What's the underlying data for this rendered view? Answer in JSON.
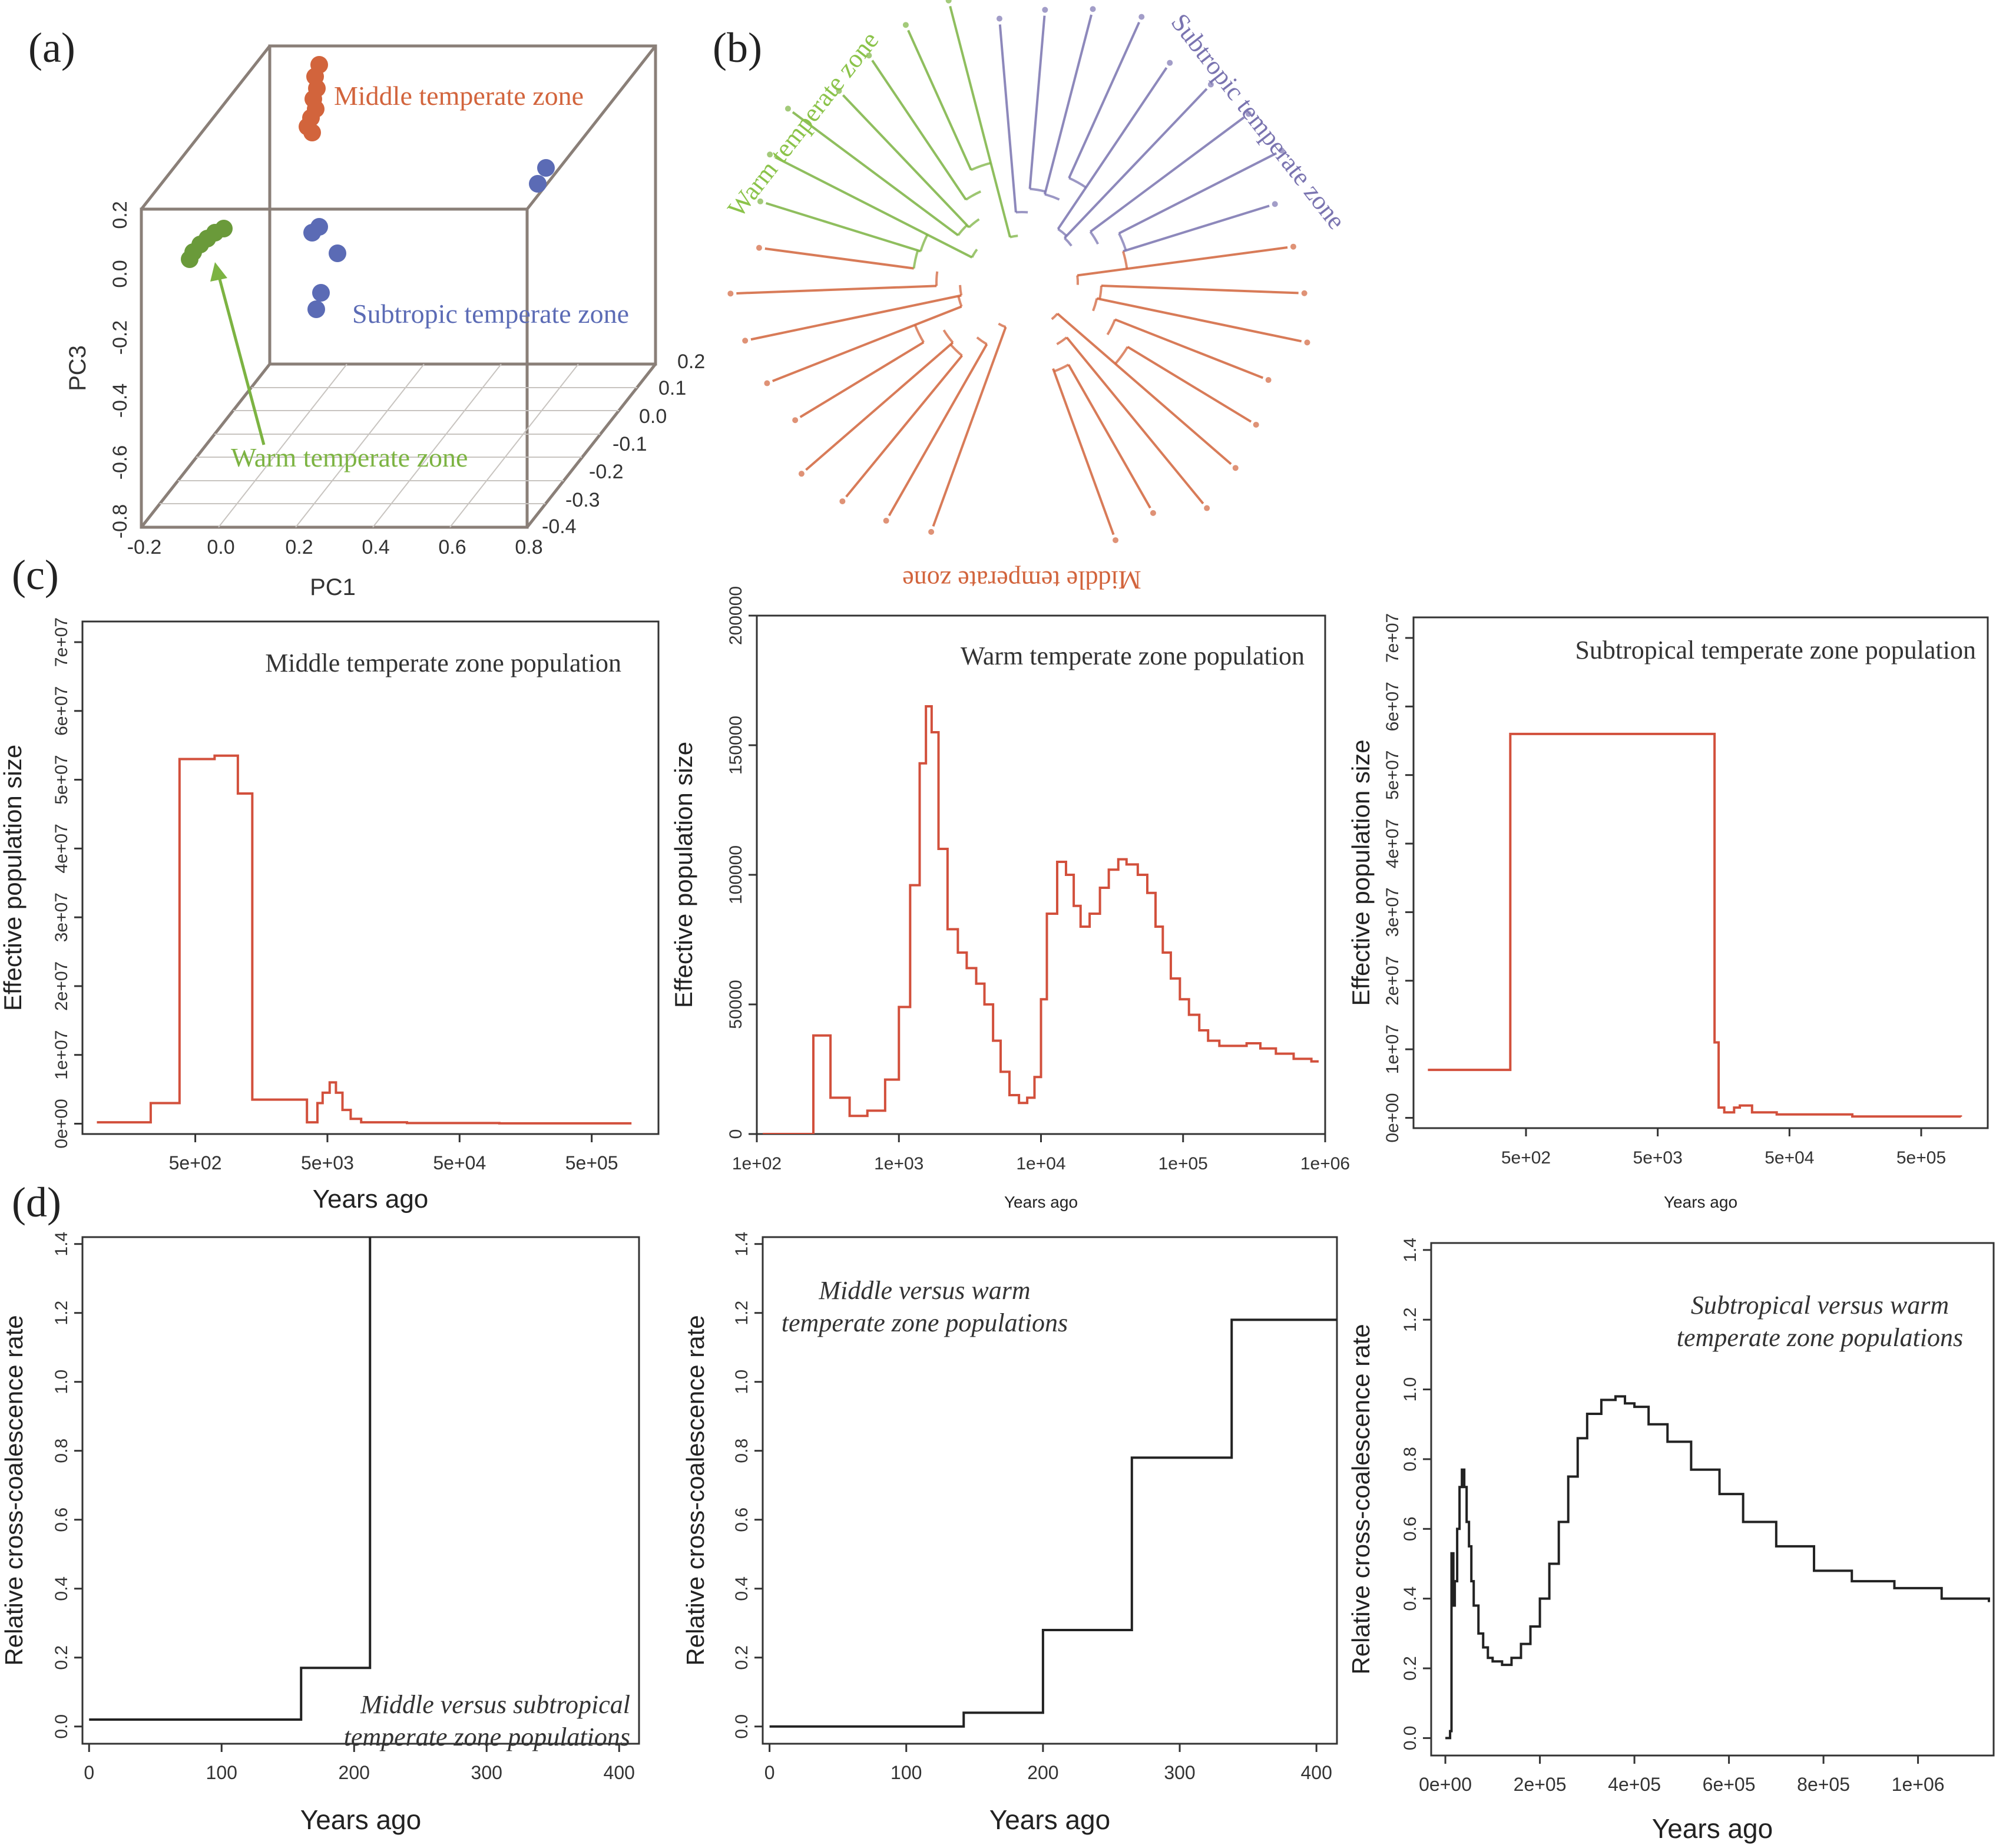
{
  "colors": {
    "orange": "#d2643c",
    "green": "#7cb342",
    "green_dark": "#6a9a3a",
    "blue": "#5b6bb5",
    "purple": "#7a74b0",
    "red": "#d2503c",
    "black": "#222222"
  },
  "panel_labels": {
    "a": "(a)",
    "b": "(b)",
    "c": "(c)",
    "d": "(d)"
  },
  "pca": {
    "zone_labels": {
      "middle": "Middle temperate zone",
      "subtropic": "Subtropic temperate zone",
      "warm": "Warm temperate zone"
    },
    "pc3_label": "PC3",
    "pc1_label": "PC1",
    "pc3_ticks": [
      "0.2",
      "0.0",
      "-0.2",
      "-0.4",
      "-0.6",
      "-0.8"
    ],
    "pc1_ticks": [
      "-0.2",
      "0.0",
      "0.2",
      "0.4",
      "0.6",
      "0.8"
    ],
    "pc2_ticks": [
      "0.2",
      "0.1",
      "0.0",
      "-0.1",
      "-0.2",
      "-0.3",
      "-0.4"
    ]
  },
  "tree": {
    "labels": {
      "warm": "Warm temperate zone",
      "subtropic": "Subtropic temperate zone",
      "middle": "Middle temperate zone"
    }
  },
  "chart_data": [
    {
      "id": "c1",
      "type": "line",
      "title": "Middle temperate zone population",
      "xlabel": "Years ago",
      "ylabel": "Effective population size",
      "xscale": "log",
      "xlim": [
        70,
        1600000
      ],
      "ylim": [
        -1500000,
        73000000
      ],
      "xtick_values": [
        500,
        5000,
        50000,
        500000
      ],
      "xtick_labels": [
        "5e+02",
        "5e+03",
        "5e+04",
        "5e+05"
      ],
      "ytick_values": [
        0,
        10000000,
        20000000,
        30000000,
        40000000,
        50000000,
        60000000,
        70000000
      ],
      "ytick_labels": [
        "0e+00",
        "1e+07",
        "2e+07",
        "3e+07",
        "4e+07",
        "5e+07",
        "6e+07",
        "7e+07"
      ],
      "x": [
        90,
        230,
        380,
        700,
        1050,
        1350,
        3500,
        4200,
        4600,
        5200,
        5800,
        6500,
        7500,
        9000,
        20000,
        100000,
        1000000
      ],
      "y": [
        200000,
        3000000,
        53000000,
        53500000,
        48000000,
        3500000,
        200000,
        3000000,
        4500000,
        6000000,
        4500000,
        2000000,
        700000,
        200000,
        100000,
        50000,
        50000
      ]
    },
    {
      "id": "c2",
      "type": "line",
      "title": "Warm temperate zone population",
      "xlabel": "Years ago",
      "ylabel": "Effective population size",
      "xscale": "log",
      "xlim": [
        100,
        1000000
      ],
      "ylim": [
        0,
        200000
      ],
      "xtick_values": [
        100,
        1000,
        10000,
        100000,
        1000000
      ],
      "xtick_labels": [
        "1e+02",
        "1e+03",
        "1e+04",
        "1e+05",
        "1e+06"
      ],
      "ytick_values": [
        0,
        50000,
        100000,
        150000,
        200000
      ],
      "ytick_labels": [
        "0",
        "50000",
        "100000",
        "150000",
        "200000"
      ],
      "x": [
        110,
        250,
        330,
        450,
        600,
        800,
        1000,
        1200,
        1400,
        1550,
        1700,
        1900,
        2200,
        2600,
        3000,
        3500,
        4000,
        4600,
        5200,
        6000,
        7000,
        8000,
        9000,
        10000,
        11000,
        13000,
        15000,
        17000,
        19000,
        22000,
        26000,
        30000,
        35000,
        40000,
        48000,
        56000,
        64000,
        72000,
        82000,
        95000,
        110000,
        130000,
        150000,
        180000,
        220000,
        280000,
        350000,
        450000,
        600000,
        800000,
        900000
      ],
      "y": [
        0,
        38000,
        14000,
        7000,
        9000,
        21000,
        49000,
        96000,
        143000,
        165000,
        155000,
        110000,
        79000,
        70000,
        64000,
        58000,
        50000,
        36000,
        24000,
        15000,
        12000,
        14000,
        22000,
        52000,
        85000,
        105000,
        100000,
        88000,
        80000,
        85000,
        95000,
        102000,
        106000,
        104000,
        100000,
        93000,
        80000,
        70000,
        60000,
        52000,
        46000,
        40000,
        36000,
        34000,
        34000,
        35000,
        33000,
        31000,
        29000,
        28000,
        28000
      ]
    },
    {
      "id": "c3",
      "type": "line",
      "title": "Subtropical temperate zone population",
      "xlabel": "Years ago",
      "ylabel": "Effective population size",
      "xscale": "log",
      "xlim": [
        70,
        1600000
      ],
      "ylim": [
        -1500000,
        73000000
      ],
      "xtick_values": [
        500,
        5000,
        50000,
        500000
      ],
      "xtick_labels": [
        "5e+02",
        "5e+03",
        "5e+04",
        "5e+05"
      ],
      "ytick_values": [
        0,
        10000000,
        20000000,
        30000000,
        40000000,
        50000000,
        60000000,
        70000000
      ],
      "ytick_labels": [
        "0e+00",
        "1e+07",
        "2e+07",
        "3e+07",
        "4e+07",
        "5e+07",
        "6e+07",
        "7e+07"
      ],
      "x": [
        90,
        380,
        13000,
        13500,
        14500,
        16000,
        19000,
        21000,
        26000,
        40000,
        150000,
        1000000
      ],
      "y": [
        7000000,
        56000000,
        56000000,
        11000000,
        1500000,
        800000,
        1500000,
        1800000,
        800000,
        500000,
        200000,
        150000
      ]
    },
    {
      "id": "d1",
      "type": "line",
      "title": "Middle versus subtropical temperate zone populations",
      "xlabel": "Years ago",
      "ylabel": "Relative cross-coalescence rate",
      "xscale": "linear",
      "xlim": [
        -5,
        415
      ],
      "ylim": [
        -0.05,
        1.42
      ],
      "xtick_values": [
        0,
        100,
        200,
        300,
        400
      ],
      "xtick_labels": [
        "0",
        "100",
        "200",
        "300",
        "400"
      ],
      "ytick_values": [
        0,
        0.2,
        0.4,
        0.6,
        0.8,
        1.0,
        1.2,
        1.4
      ],
      "ytick_labels": [
        "0.0",
        "0.2",
        "0.4",
        "0.6",
        "0.8",
        "1.0",
        "1.2",
        "1.4"
      ],
      "x": [
        0,
        160,
        160,
        212,
        212,
        212
      ],
      "y": [
        0.02,
        0.02,
        0.17,
        0.17,
        1.45,
        1.45
      ]
    },
    {
      "id": "d2",
      "type": "line",
      "title": "Middle versus warm temperate zone populations",
      "xlabel": "Years ago",
      "ylabel": "Relative cross-coalescence rate",
      "xscale": "linear",
      "xlim": [
        -5,
        415
      ],
      "ylim": [
        -0.05,
        1.42
      ],
      "xtick_values": [
        0,
        100,
        200,
        300,
        400
      ],
      "xtick_labels": [
        "0",
        "100",
        "200",
        "300",
        "400"
      ],
      "ytick_values": [
        0,
        0.2,
        0.4,
        0.6,
        0.8,
        1.0,
        1.2,
        1.4
      ],
      "ytick_labels": [
        "0.0",
        "0.2",
        "0.4",
        "0.6",
        "0.8",
        "1.0",
        "1.2",
        "1.4"
      ],
      "x": [
        0,
        142,
        142,
        200,
        200,
        265,
        265,
        338,
        338,
        415
      ],
      "y": [
        0.0,
        0.0,
        0.04,
        0.04,
        0.28,
        0.28,
        0.78,
        0.78,
        1.18,
        1.18
      ]
    },
    {
      "id": "d3",
      "type": "line",
      "title": "Subtropical versus warm temperate zone populations",
      "xlabel": "Years ago",
      "ylabel": "Relative cross-coalescence rate",
      "xscale": "linear",
      "xlim": [
        -30000,
        1160000
      ],
      "ylim": [
        -0.05,
        1.42
      ],
      "xtick_values": [
        0,
        200000,
        400000,
        600000,
        800000,
        1000000
      ],
      "xtick_labels": [
        "0e+00",
        "2e+05",
        "4e+05",
        "6e+05",
        "8e+05",
        "1e+06"
      ],
      "ytick_values": [
        0,
        0.2,
        0.4,
        0.6,
        0.8,
        1.0,
        1.2,
        1.4
      ],
      "ytick_labels": [
        "0.0",
        "0.2",
        "0.4",
        "0.6",
        "0.8",
        "1.0",
        "1.2",
        "1.4"
      ],
      "x": [
        0,
        10000,
        13000,
        17000,
        20000,
        25000,
        30000,
        35000,
        40000,
        45000,
        50000,
        55000,
        60000,
        70000,
        80000,
        90000,
        100000,
        120000,
        140000,
        160000,
        180000,
        200000,
        220000,
        240000,
        260000,
        280000,
        300000,
        330000,
        360000,
        380000,
        400000,
        430000,
        470000,
        520000,
        580000,
        630000,
        700000,
        780000,
        860000,
        950000,
        1050000,
        1150000
      ],
      "y": [
        0.0,
        0.02,
        0.53,
        0.38,
        0.45,
        0.6,
        0.72,
        0.77,
        0.72,
        0.62,
        0.55,
        0.45,
        0.38,
        0.3,
        0.26,
        0.23,
        0.22,
        0.21,
        0.23,
        0.27,
        0.32,
        0.4,
        0.5,
        0.62,
        0.75,
        0.86,
        0.93,
        0.97,
        0.98,
        0.96,
        0.95,
        0.9,
        0.85,
        0.77,
        0.7,
        0.62,
        0.55,
        0.48,
        0.45,
        0.43,
        0.4,
        0.39
      ]
    }
  ]
}
